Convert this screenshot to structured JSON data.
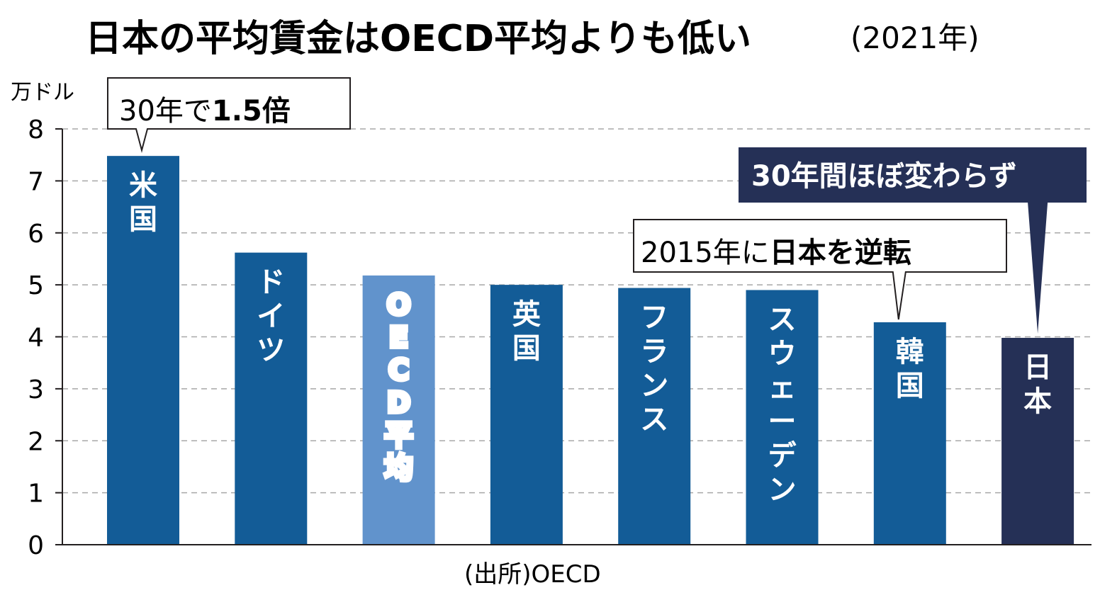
{
  "chart_data": {
    "type": "bar",
    "title": "日本の平均賃金はOECD平均よりも低い",
    "title_year": "(2021年)",
    "ylabel": "万ドル",
    "ylim": [
      0,
      8
    ],
    "yticks": [
      "0",
      "1",
      "2",
      "3",
      "4",
      "5",
      "6",
      "7",
      "8"
    ],
    "grid": true,
    "categories": [
      "米国",
      "ドイツ",
      "OECD平均",
      "英国",
      "フランス",
      "スウェーデン",
      "韓国",
      "日本"
    ],
    "values": [
      7.48,
      5.62,
      5.18,
      5.0,
      4.94,
      4.9,
      4.28,
      3.98
    ],
    "source": "(出所)OECD",
    "annotations": [
      {
        "target": "米国",
        "prefix": "30年で",
        "emphasis": "1.5倍"
      },
      {
        "target": "韓国",
        "prefix": "2015年に",
        "emphasis": "日本を逆転"
      },
      {
        "target": "日本",
        "text": "30年間ほぼ変わらず"
      }
    ]
  },
  "colors": {
    "bar": "#135c97",
    "oecd_bar": "#6193cc",
    "japan_bar": "#253056",
    "grid": "#a8a8a8",
    "text": "#231f20"
  }
}
